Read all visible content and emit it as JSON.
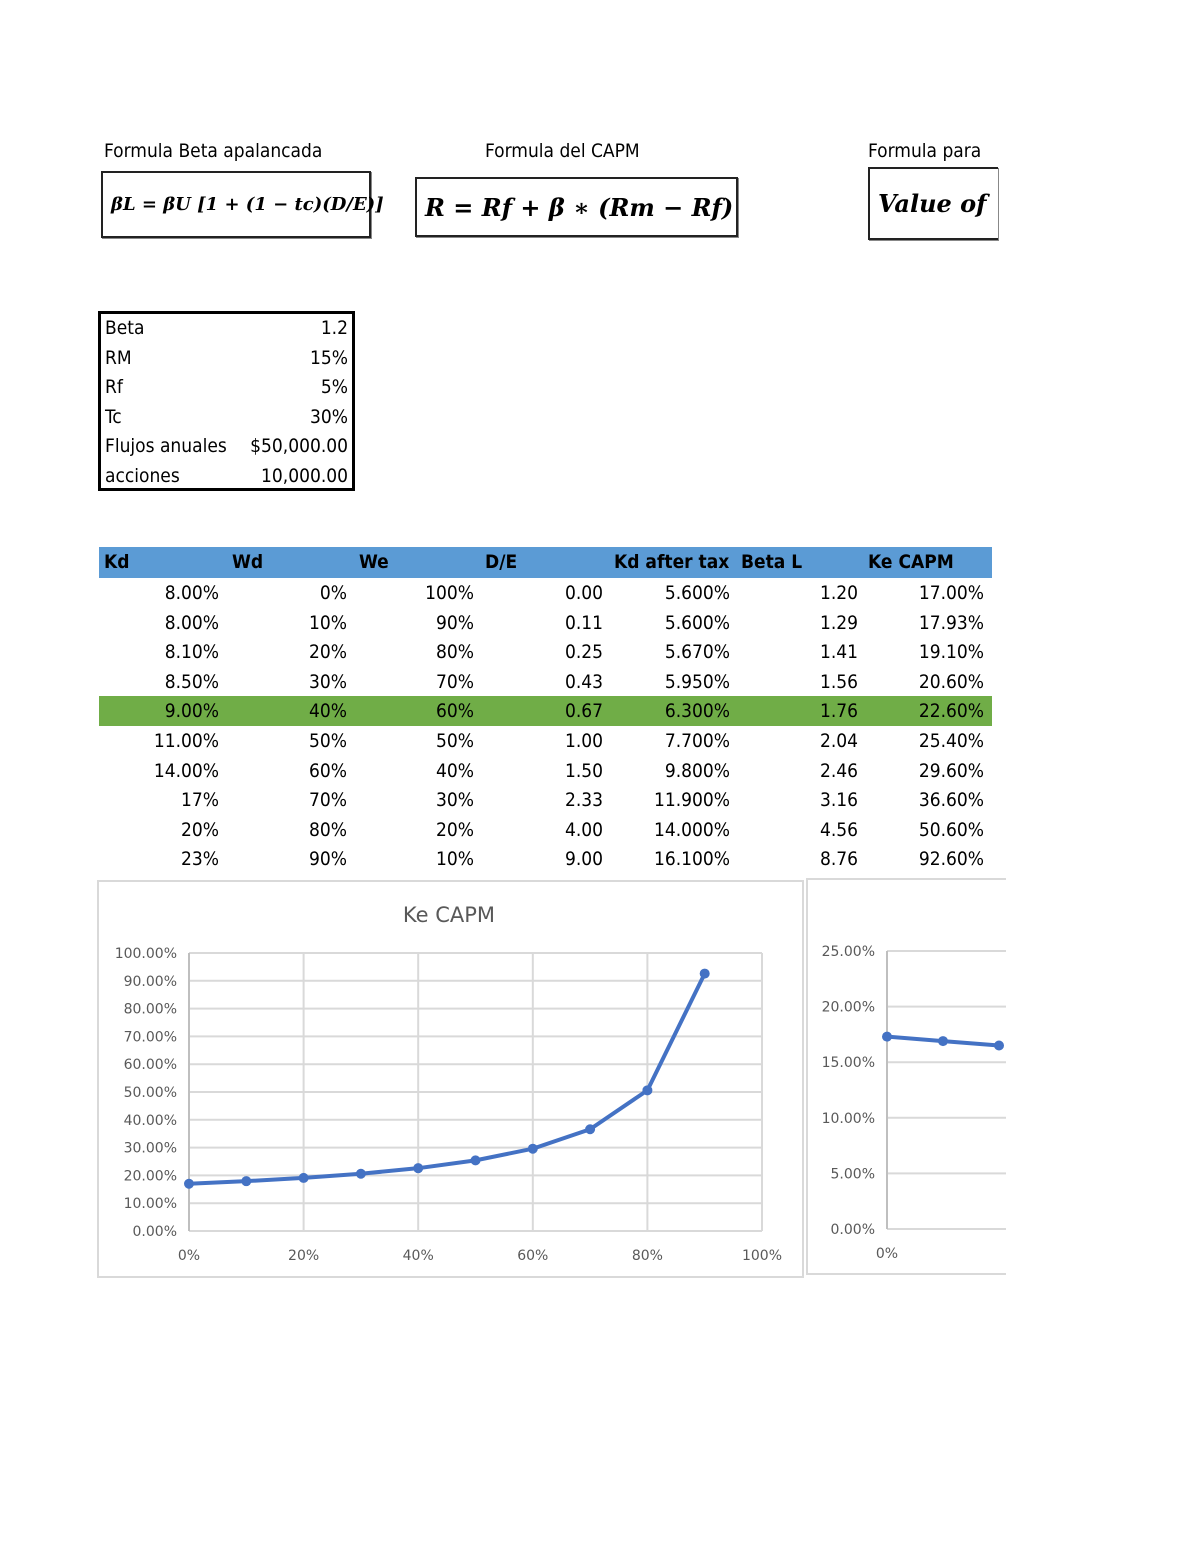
{
  "formulas": [
    {
      "title": "Formula Beta apalancada",
      "expression": "βL = βU [1 + (1 − tc)(D/E)]"
    },
    {
      "title": "Formula del CAPM",
      "expression": "R = Rf + β ∗ (Rm − Rf)"
    },
    {
      "title": "Formula para",
      "expression": "Value of"
    }
  ],
  "params": [
    {
      "label": "Beta",
      "value": "1.2"
    },
    {
      "label": "RM",
      "value": "15%"
    },
    {
      "label": "Rf",
      "value": "5%"
    },
    {
      "label": "Tc",
      "value": "30%"
    },
    {
      "label": "Flujos anuales",
      "value": "$50,000.00"
    },
    {
      "label": "acciones",
      "value": "10,000.00"
    }
  ],
  "table": {
    "headers": [
      "Kd",
      "Wd",
      "We",
      "D/E",
      "Kd after tax",
      "Beta L",
      "Ke CAPM"
    ],
    "highlight_row": 4,
    "highlight_color": "#70ad47",
    "header_color": "#5b9bd5",
    "rows": [
      [
        "8.00%",
        "0%",
        "100%",
        "0.00",
        "5.600%",
        "1.20",
        "17.00%"
      ],
      [
        "8.00%",
        "10%",
        "90%",
        "0.11",
        "5.600%",
        "1.29",
        "17.93%"
      ],
      [
        "8.10%",
        "20%",
        "80%",
        "0.25",
        "5.670%",
        "1.41",
        "19.10%"
      ],
      [
        "8.50%",
        "30%",
        "70%",
        "0.43",
        "5.950%",
        "1.56",
        "20.60%"
      ],
      [
        "9.00%",
        "40%",
        "60%",
        "0.67",
        "6.300%",
        "1.76",
        "22.60%"
      ],
      [
        "11.00%",
        "50%",
        "50%",
        "1.00",
        "7.700%",
        "2.04",
        "25.40%"
      ],
      [
        "14.00%",
        "60%",
        "40%",
        "1.50",
        "9.800%",
        "2.46",
        "29.60%"
      ],
      [
        "17%",
        "70%",
        "30%",
        "2.33",
        "11.900%",
        "3.16",
        "36.60%"
      ],
      [
        "20%",
        "80%",
        "20%",
        "4.00",
        "14.000%",
        "4.56",
        "50.60%"
      ],
      [
        "23%",
        "90%",
        "10%",
        "9.00",
        "16.100%",
        "8.76",
        "92.60%"
      ]
    ]
  },
  "chart_data": [
    {
      "type": "line",
      "title": "Ke CAPM",
      "x": [
        0,
        0.1,
        0.2,
        0.3,
        0.4,
        0.5,
        0.6,
        0.7,
        0.8,
        0.9
      ],
      "series": [
        {
          "values": [
            0.17,
            0.1793,
            0.191,
            0.206,
            0.226,
            0.254,
            0.296,
            0.366,
            0.506,
            0.926
          ]
        }
      ],
      "xlim": [
        0,
        1
      ],
      "ylim": [
        0,
        1
      ],
      "xticks": [
        "0%",
        "20%",
        "40%",
        "60%",
        "80%",
        "100%"
      ],
      "yticks": [
        "0.00%",
        "10.00%",
        "20.00%",
        "30.00%",
        "40.00%",
        "50.00%",
        "60.00%",
        "70.00%",
        "80.00%",
        "90.00%",
        "100.00%"
      ],
      "grid": true,
      "color": "#4472c4"
    },
    {
      "type": "line",
      "title": "",
      "x": [
        0,
        0.1,
        0.2
      ],
      "series": [
        {
          "values": [
            0.173,
            0.169,
            0.165
          ]
        }
      ],
      "ylim": [
        0,
        0.25
      ],
      "xticks": [
        "0%"
      ],
      "yticks": [
        "0.00%",
        "5.00%",
        "10.00%",
        "15.00%",
        "20.00%",
        "25.00%"
      ],
      "grid": true,
      "color": "#4472c4"
    }
  ]
}
